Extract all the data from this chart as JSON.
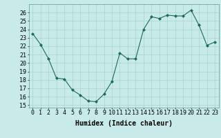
{
  "hours": [
    0,
    1,
    2,
    3,
    4,
    5,
    6,
    7,
    8,
    9,
    10,
    11,
    12,
    13,
    14,
    15,
    16,
    17,
    18,
    19,
    20,
    21,
    22,
    23
  ],
  "values": [
    23.5,
    22.2,
    20.5,
    18.2,
    18.1,
    16.8,
    16.2,
    15.5,
    15.4,
    16.3,
    17.8,
    21.2,
    20.5,
    20.5,
    24.0,
    25.5,
    25.3,
    25.7,
    25.6,
    25.6,
    26.3,
    24.5,
    22.1,
    22.5
  ],
  "xlabel": "Humidex (Indice chaleur)",
  "ylim_min": 14.7,
  "ylim_max": 27.0,
  "yticks": [
    15,
    16,
    17,
    18,
    19,
    20,
    21,
    22,
    23,
    24,
    25,
    26
  ],
  "line_color": "#1a6b5a",
  "marker_color": "#1a6b5a",
  "bg_color": "#c8eae8",
  "grid_color": "#a8d4d0",
  "tick_label_fontsize": 6.0,
  "xlabel_fontsize": 7.0
}
